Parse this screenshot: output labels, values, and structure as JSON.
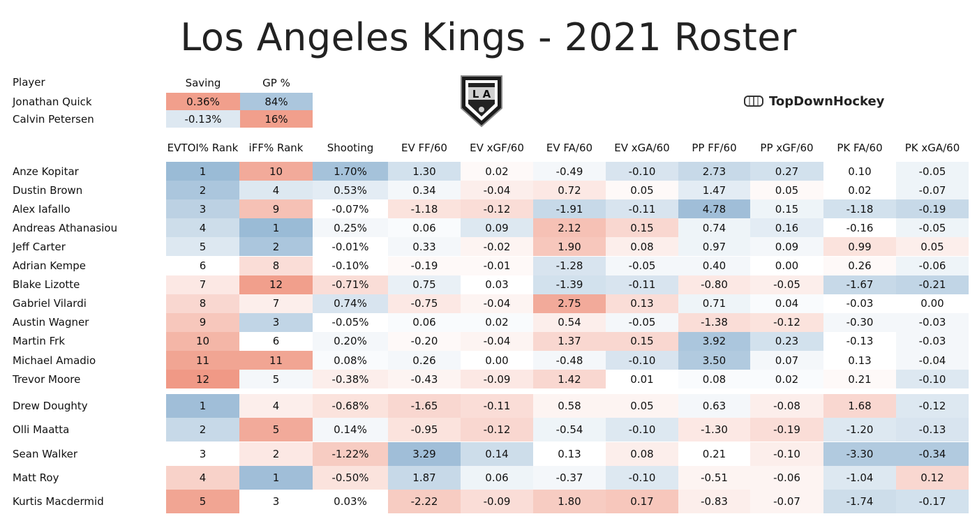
{
  "title": "Los Angeles Kings - 2021 Roster",
  "brand": {
    "name": "TopDownHockey",
    "logo_icon": "la-kings-shield-icon",
    "brand_icon": "rink-icon"
  },
  "colors": {
    "blue_strong": "#8fb3d1",
    "red_strong": "#ee8e78",
    "neutral": "#ffffff"
  },
  "chart_data": {
    "type": "table",
    "goalies": {
      "columns": [
        "Player",
        "Saving",
        "GP %"
      ],
      "rows": [
        {
          "player": "Jonathan Quick",
          "cells": [
            "0.36%",
            "84%"
          ],
          "shades": [
            0.85,
            -0.75
          ]
        },
        {
          "player": "Calvin Petersen",
          "cells": [
            "-0.13%",
            "16%"
          ],
          "shades": [
            -0.3,
            0.85
          ]
        }
      ]
    },
    "skaters": {
      "columns": [
        "EVTOI% Rank",
        "iFF% Rank",
        "Shooting",
        "EV FF/60",
        "EV xGF/60",
        "EV FA/60",
        "EV xGA/60",
        "PP FF/60",
        "PP xGF/60",
        "PK FA/60",
        "PK xGA/60"
      ],
      "forwards": [
        {
          "player": "Anze Kopitar",
          "cells": [
            "1",
            "10",
            "1.70%",
            "1.30",
            "0.02",
            "-0.49",
            "-0.10",
            "2.73",
            "0.27",
            "0.10",
            "-0.05"
          ],
          "shades": [
            -0.9,
            0.75,
            -0.8,
            -0.4,
            0.05,
            -0.1,
            -0.35,
            -0.5,
            -0.4,
            0,
            -0.15
          ]
        },
        {
          "player": "Dustin Brown",
          "cells": [
            "2",
            "4",
            "0.53%",
            "0.34",
            "-0.04",
            "0.72",
            "0.05",
            "1.47",
            "0.05",
            "0.02",
            "-0.07"
          ],
          "shades": [
            -0.75,
            -0.3,
            -0.25,
            -0.1,
            0.15,
            0.2,
            0.05,
            -0.25,
            0.05,
            0,
            -0.15
          ]
        },
        {
          "player": "Alex Iafallo",
          "cells": [
            "3",
            "9",
            "-0.07%",
            "-1.18",
            "-0.12",
            "-1.91",
            "-0.11",
            "4.78",
            "0.15",
            "-1.18",
            "-0.19"
          ],
          "shades": [
            -0.6,
            0.55,
            0,
            0.25,
            0.3,
            -0.5,
            -0.35,
            -0.85,
            -0.15,
            -0.4,
            -0.5
          ]
        },
        {
          "player": "Andreas Athanasiou",
          "cells": [
            "4",
            "1",
            "0.25%",
            "0.06",
            "0.09",
            "2.12",
            "0.15",
            "0.74",
            "0.16",
            "-0.16",
            "-0.05"
          ],
          "shades": [
            -0.45,
            -0.9,
            -0.1,
            -0.05,
            -0.3,
            0.55,
            0.35,
            -0.15,
            -0.25,
            0,
            -0.15
          ]
        },
        {
          "player": "Jeff Carter",
          "cells": [
            "5",
            "2",
            "-0.01%",
            "0.33",
            "-0.02",
            "1.90",
            "0.08",
            "0.97",
            "0.09",
            "0.99",
            "0.05"
          ],
          "shades": [
            -0.3,
            -0.75,
            0,
            -0.1,
            0.1,
            0.5,
            0.15,
            -0.15,
            -0.1,
            0.25,
            0.15
          ]
        },
        {
          "player": "Adrian Kempe",
          "cells": [
            "6",
            "8",
            "-0.10%",
            "-0.19",
            "-0.01",
            "-1.28",
            "-0.05",
            "0.40",
            "0.00",
            "0.26",
            "-0.06"
          ],
          "shades": [
            0,
            0.3,
            0,
            0.05,
            0.05,
            -0.35,
            -0.1,
            -0.1,
            0,
            0.05,
            -0.15
          ]
        },
        {
          "player": "Blake Lizotte",
          "cells": [
            "7",
            "12",
            "-0.71%",
            "0.75",
            "0.03",
            "-1.39",
            "-0.11",
            "-0.80",
            "-0.05",
            "-1.67",
            "-0.21"
          ],
          "shades": [
            0.2,
            0.85,
            0.3,
            -0.2,
            0,
            -0.4,
            -0.35,
            0.2,
            0.15,
            -0.5,
            -0.55
          ]
        },
        {
          "player": "Gabriel Vilardi",
          "cells": [
            "8",
            "7",
            "0.74%",
            "-0.75",
            "-0.04",
            "2.75",
            "0.13",
            "0.71",
            "0.04",
            "-0.03",
            "0.00"
          ],
          "shades": [
            0.35,
            0.15,
            -0.35,
            0.2,
            0.1,
            0.75,
            0.3,
            -0.15,
            -0.05,
            0,
            0
          ]
        },
        {
          "player": "Austin Wagner",
          "cells": [
            "9",
            "3",
            "-0.05%",
            "0.06",
            "0.02",
            "0.54",
            "-0.05",
            "-1.38",
            "-0.12",
            "-0.30",
            "-0.03"
          ],
          "shades": [
            0.5,
            -0.55,
            0,
            -0.05,
            -0.05,
            0.15,
            -0.1,
            0.3,
            0.25,
            -0.1,
            -0.1
          ]
        },
        {
          "player": "Martin Frk",
          "cells": [
            "10",
            "6",
            "0.20%",
            "-0.20",
            "-0.04",
            "1.37",
            "0.15",
            "3.92",
            "0.23",
            "-0.13",
            "-0.03"
          ],
          "shades": [
            0.65,
            0,
            -0.1,
            0.05,
            0.1,
            0.35,
            0.35,
            -0.75,
            -0.4,
            0,
            -0.1
          ]
        },
        {
          "player": "Michael Amadio",
          "cells": [
            "11",
            "11",
            "0.08%",
            "0.26",
            "0.00",
            "-0.48",
            "-0.10",
            "3.50",
            "0.07",
            "0.13",
            "-0.04"
          ],
          "shades": [
            0.8,
            0.8,
            -0.05,
            -0.1,
            0,
            -0.1,
            -0.35,
            -0.7,
            -0.1,
            0,
            -0.1
          ]
        },
        {
          "player": "Trevor Moore",
          "cells": [
            "12",
            "5",
            "-0.38%",
            "-0.43",
            "-0.09",
            "1.42",
            "0.01",
            "0.08",
            "0.02",
            "0.21",
            "-0.10"
          ],
          "shades": [
            0.9,
            -0.1,
            0.15,
            0.1,
            0.2,
            0.35,
            0,
            -0.05,
            -0.05,
            0.05,
            -0.3
          ]
        }
      ],
      "defense": [
        {
          "player": "Drew Doughty",
          "cells": [
            "1",
            "4",
            "-0.68%",
            "-1.65",
            "-0.11",
            "0.58",
            "0.05",
            "0.63",
            "-0.08",
            "1.68",
            "-0.12"
          ],
          "shades": [
            -0.85,
            0.15,
            0.25,
            0.35,
            0.3,
            0.1,
            0.1,
            -0.1,
            0.15,
            0.35,
            -0.3
          ]
        },
        {
          "player": "Olli Maatta",
          "cells": [
            "2",
            "5",
            "0.14%",
            "-0.95",
            "-0.12",
            "-0.54",
            "-0.10",
            "-1.30",
            "-0.19",
            "-1.20",
            "-0.13"
          ],
          "shades": [
            -0.5,
            0.75,
            -0.1,
            0.25,
            0.35,
            -0.15,
            -0.3,
            0.2,
            0.3,
            -0.3,
            -0.35
          ]
        },
        {
          "player": "Sean Walker",
          "cells": [
            "3",
            "2",
            "-1.22%",
            "3.29",
            "0.14",
            "0.13",
            "0.08",
            "0.21",
            "-0.10",
            "-3.30",
            "-0.34"
          ],
          "shades": [
            0,
            0.2,
            0.45,
            -0.85,
            -0.45,
            0,
            0.15,
            0,
            0.15,
            -0.7,
            -0.7
          ]
        },
        {
          "player": "Matt Roy",
          "cells": [
            "4",
            "1",
            "-0.50%",
            "1.87",
            "0.06",
            "-0.37",
            "-0.10",
            "-0.51",
            "-0.06",
            "-1.04",
            "0.12"
          ],
          "shades": [
            0.4,
            -0.85,
            0.25,
            -0.5,
            -0.15,
            -0.1,
            -0.3,
            0.1,
            0.1,
            -0.3,
            0.35
          ]
        },
        {
          "player": "Kurtis Macdermid",
          "cells": [
            "5",
            "3",
            "0.03%",
            "-2.22",
            "-0.09",
            "1.80",
            "0.17",
            "-0.83",
            "-0.07",
            "-1.74",
            "-0.17"
          ],
          "shades": [
            0.8,
            0,
            0,
            0.45,
            0.3,
            0.45,
            0.5,
            0.15,
            0.1,
            -0.45,
            -0.4
          ]
        }
      ]
    }
  }
}
